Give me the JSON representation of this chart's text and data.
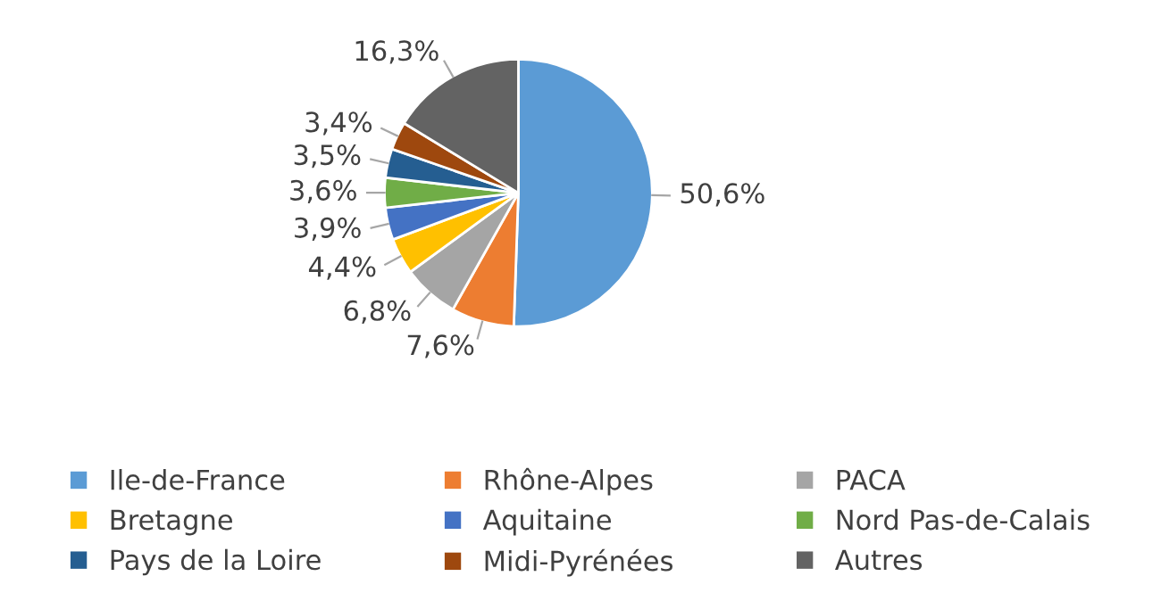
{
  "chart_data": {
    "type": "pie",
    "categories": [
      "Ile-de-France",
      "Rhône-Alpes",
      "PACA",
      "Bretagne",
      "Aquitaine",
      "Nord Pas-de-Calais",
      "Pays de la Loire",
      "Midi-Pyrénées",
      "Autres"
    ],
    "values": [
      50.6,
      7.6,
      6.8,
      4.4,
      3.9,
      3.6,
      3.5,
      3.4,
      16.3
    ],
    "value_labels": [
      "50,6%",
      "7,6%",
      "6,8%",
      "4,4%",
      "3,9%",
      "3,6%",
      "3,5%",
      "3,4%",
      "16,3%"
    ],
    "colors": [
      "#5b9bd5",
      "#ed7d31",
      "#a5a5a5",
      "#ffc000",
      "#4472c4",
      "#70ad47",
      "#255e91",
      "#9e480e",
      "#636363"
    ],
    "legend": "bottom"
  }
}
